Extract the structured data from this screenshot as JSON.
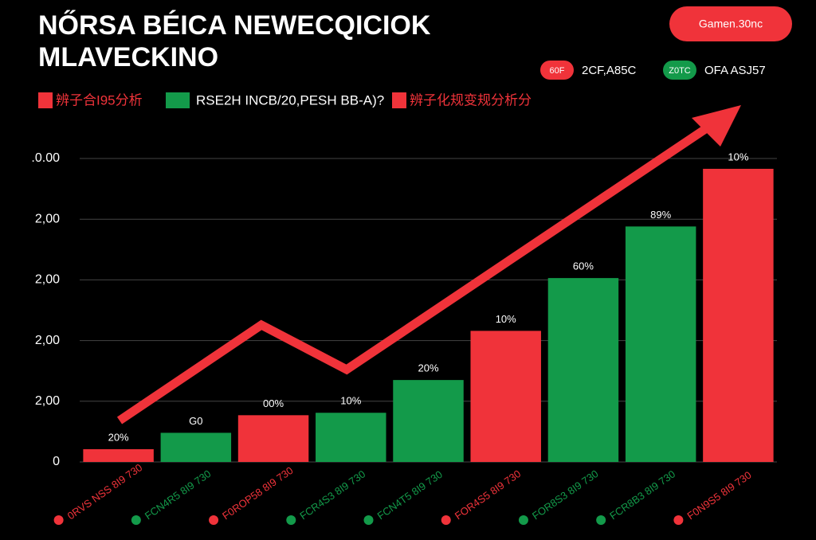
{
  "chart_data": {
    "type": "bar",
    "title": "NŐRSA BÉICA NEWECQICIOK",
    "subtitle": "MLAVECKINO",
    "button": "Gamen.30nc",
    "legend": [
      {
        "name": "辨子合I95分析",
        "color": "#f0333a"
      },
      {
        "name": "RSE2H INCB/20,PESH BB-A)?",
        "color": "#139a4a"
      },
      {
        "name": "辨子化规变规分析分",
        "color": "#f0333a"
      }
    ],
    "badges": [
      {
        "tag": "60F",
        "text": "2CF,A85C",
        "color": "#f0333a"
      },
      {
        "tag": "Z0TC",
        "text": "OFA ASJ57",
        "color": "#139a4a"
      }
    ],
    "categories": [
      "0RVS NSS 8I9 730",
      "FCN4R5 8I9 730",
      "F0ROP58 8I9 730",
      "FCR4S3 8I9 730",
      "FCN4T5 8I9 730",
      "FOR4S5 8I9 730",
      "FOR8S3 8I9 730",
      "FCR8B3 8I9 730",
      "F0N9S5 8I9 730"
    ],
    "values": [
      0.21,
      0.48,
      0.77,
      0.81,
      1.35,
      2.16,
      3.03,
      3.88,
      4.83
    ],
    "colors": [
      "#f0333a",
      "#139a4a",
      "#f0333a",
      "#139a4a",
      "#139a4a",
      "#f0333a",
      "#139a4a",
      "#139a4a",
      "#f0333a"
    ],
    "annotations": [
      "20%",
      "G0",
      "00%",
      "10%",
      "20%",
      "10%",
      "60%",
      "89%",
      "10%"
    ],
    "ylim": [
      0,
      5
    ],
    "yticks": [
      0,
      {
        "value": 1,
        "label": "2,00"
      },
      {
        "value": 2,
        "label": "2,00"
      },
      {
        "value": 3,
        "label": "2,00"
      },
      {
        "value": 4,
        "label": "2,00"
      },
      {
        "value": 5,
        "label": ".0.00"
      }
    ],
    "grid": true
  }
}
